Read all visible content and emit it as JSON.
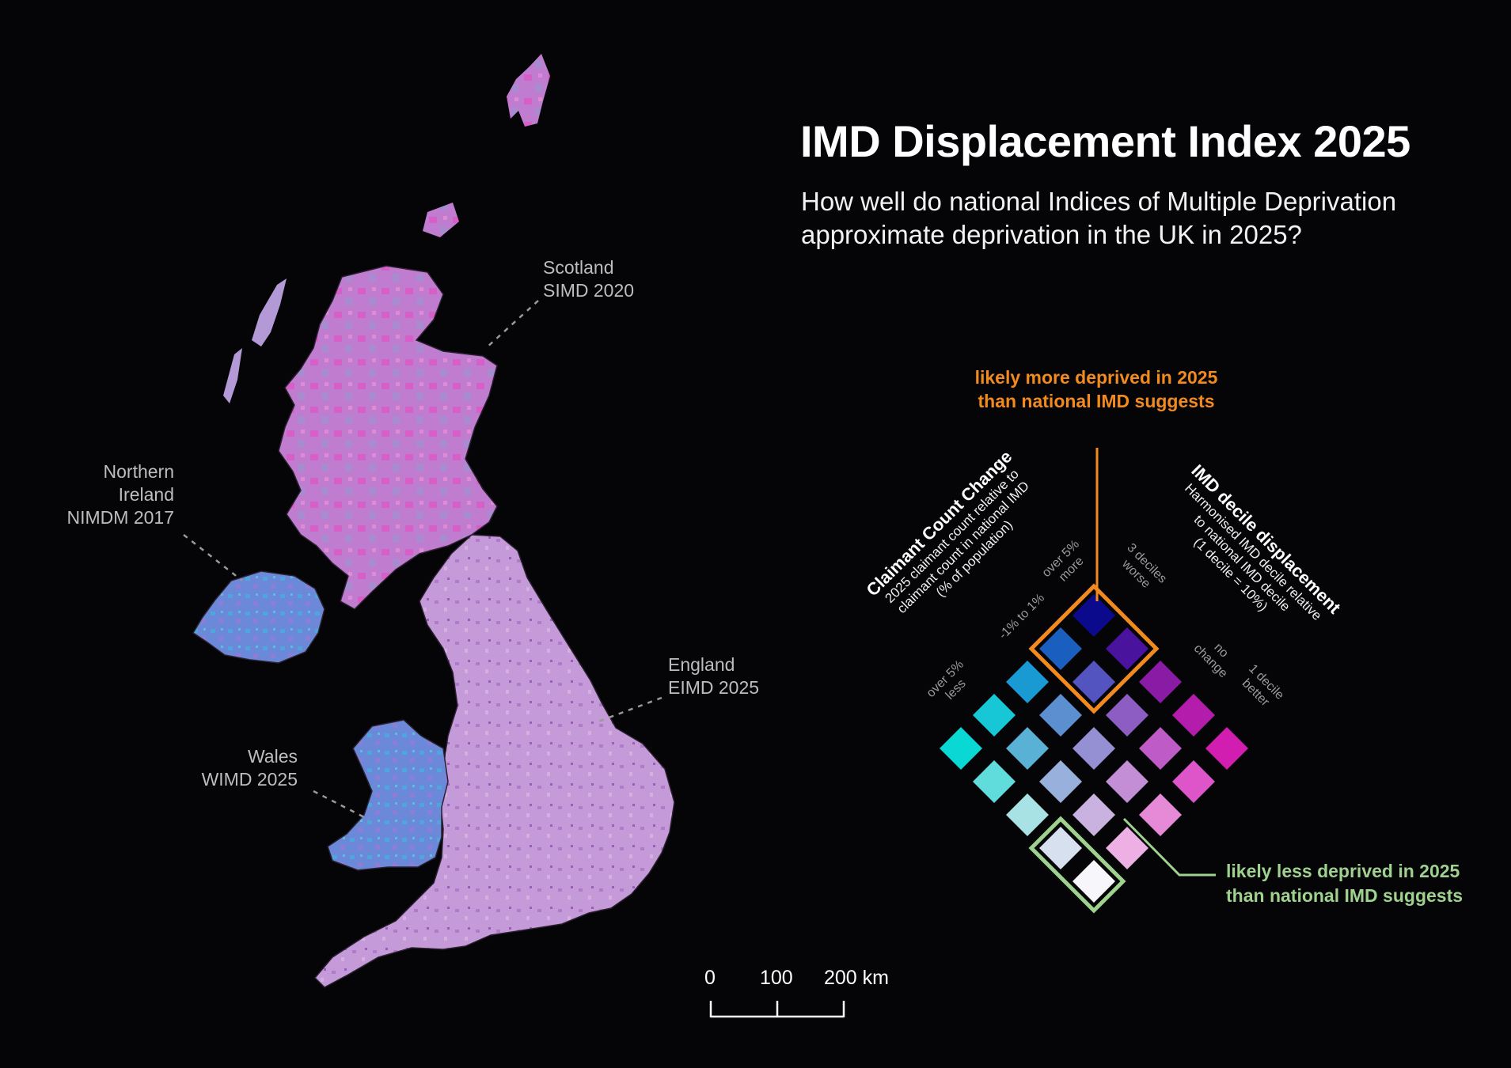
{
  "title": "IMD Displacement Index 2025",
  "subtitle": "How well do national Indices of Multiple Deprivation approximate deprivation in the UK in 2025?",
  "regions": {
    "scotland": {
      "name": "Scotland",
      "index": "SIMD 2020"
    },
    "northern_ireland": {
      "name_line1": "Northern",
      "name_line2": "Ireland",
      "index": "NIMDM 2017"
    },
    "england": {
      "name": "England",
      "index": "EIMD 2025"
    },
    "wales": {
      "name": "Wales",
      "index": "WIMD 2025"
    }
  },
  "colors": {
    "scotland": "#c876cf",
    "northern_ireland": "#6b89d8",
    "england": "#c59ad8",
    "wales": "#6f8fdc",
    "orange": "#f28a1e",
    "green": "#9fd18f"
  },
  "legend": {
    "more_deprived": "likely more deprived in 2025 than national IMD suggests",
    "less_deprived": "likely less deprived in 2025 than national IMD suggests",
    "claimant_axis": {
      "title": "Claimant Count Change",
      "desc_line1": "2025 claimant count relative to",
      "desc_line2": "claimant count in national IMD",
      "desc_line3": "(% of population)",
      "ticks": [
        {
          "line1": "over 5%",
          "line2": "more"
        },
        {
          "line1": "-1% to 1%",
          "line2": ""
        },
        {
          "line1": "over 5%",
          "line2": "less"
        }
      ]
    },
    "imd_axis": {
      "title": "IMD decile displacement",
      "desc_line1": "Harmonised IMD decile relative",
      "desc_line2": "to national IMD decile",
      "desc_line3": "(1 decile = 10%)",
      "ticks": [
        {
          "line1": "3 deciles",
          "line2": "worse"
        },
        {
          "line1": "no",
          "line2": "change"
        },
        {
          "line1": "1 decile",
          "line2": "better"
        }
      ]
    },
    "grid": [
      [
        "#0c0a8c",
        "#4a139e",
        "#8a1ba5",
        "#b41cab",
        "#d21eb0"
      ],
      [
        "#1a5fc0",
        "#5454c0",
        "#8d5dc4",
        "#be5bc6",
        "#dd55c8"
      ],
      [
        "#1a9ad2",
        "#5b8fd0",
        "#9590d4",
        "#c48ed6",
        "#e68ad8"
      ],
      [
        "#18c7d6",
        "#5ab1d6",
        "#98b1dc",
        "#c9b1e0",
        "#eeb0e4"
      ],
      [
        "#0ad8d4",
        "#60dcdd",
        "#a8e2e4",
        "#d6e0ef",
        "#f7f7fb"
      ]
    ]
  },
  "scale_bar": {
    "labels": [
      "0",
      "100",
      "200 km"
    ]
  }
}
